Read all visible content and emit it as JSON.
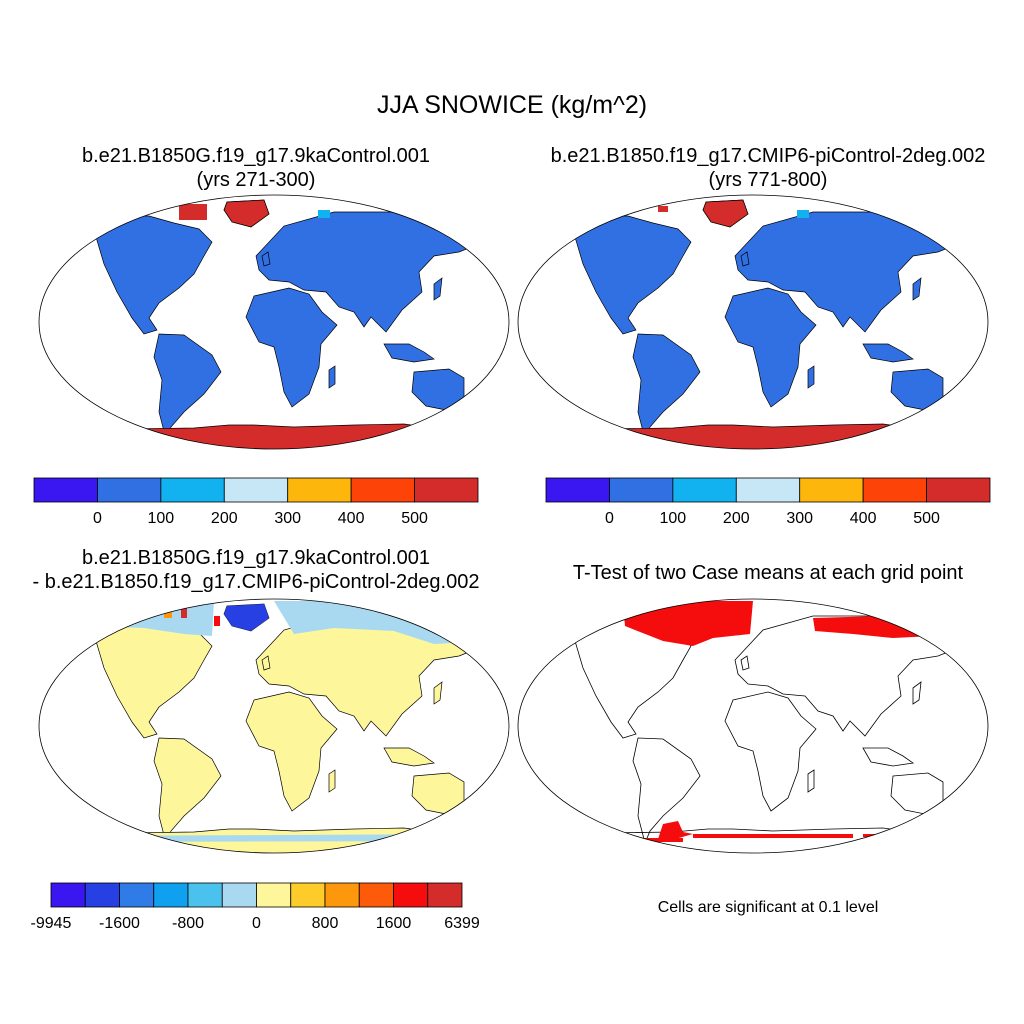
{
  "figure": {
    "title": "JJA SNOWICE (kg/m^2)"
  },
  "panels": {
    "top_left": {
      "title_line1": "b.e21.B1850G.f19_g17.9kaControl.001",
      "title_line2": "(yrs 271-300)"
    },
    "top_right": {
      "title_line1": "b.e21.B1850.f19_g17.CMIP6-piControl-2deg.002",
      "title_line2": "(yrs 771-800)"
    },
    "bottom_left": {
      "title_line1": "b.e21.B1850G.f19_g17.9kaControl.001",
      "title_line2": "- b.e21.B1850.f19_g17.CMIP6-piControl-2deg.002"
    },
    "bottom_right": {
      "title": "T-Test of two Case means at each grid point",
      "note": "Cells are significant at 0.1 level"
    }
  },
  "colorbars": {
    "abs": {
      "colors": [
        "#3a16f0",
        "#3170e3",
        "#12b2f0",
        "#c7e7f7",
        "#fdb70c",
        "#fd4308",
        "#d42b2b"
      ],
      "labels": [
        "0",
        "100",
        "200",
        "300",
        "400",
        "500"
      ]
    },
    "diff": {
      "colors": [
        "#3a16f0",
        "#2740e4",
        "#2f7be8",
        "#10a0f0",
        "#4bc1ee",
        "#a9d9f1",
        "#fdf69b",
        "#fdcb2a",
        "#fd980c",
        "#fd5a0a",
        "#f50c0c",
        "#d42b2b"
      ],
      "labels": [
        "-9945",
        "-1600",
        "-800",
        "0",
        "800",
        "1600",
        "6399"
      ]
    }
  },
  "map_colors": {
    "land_abs": "#3170e3",
    "ice_abs": "#d42b2b",
    "land_diff": "#fdf69b",
    "snow_diff": "#a9d9f1",
    "significant": "#f50c0c"
  }
}
